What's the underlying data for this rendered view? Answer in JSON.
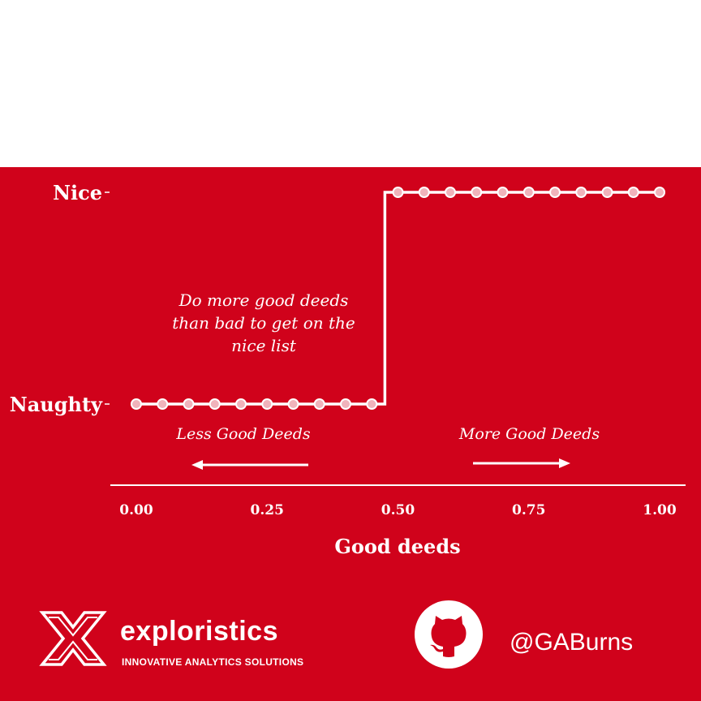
{
  "colors": {
    "background": "#d0021b",
    "foreground": "#ffffff",
    "marker_fill": "#f0b3bb"
  },
  "chart_data": {
    "type": "line",
    "step": true,
    "x": [
      0.0,
      0.05,
      0.1,
      0.15,
      0.2,
      0.25,
      0.3,
      0.35,
      0.4,
      0.45,
      0.5,
      0.55,
      0.6,
      0.65,
      0.7,
      0.75,
      0.8,
      0.85,
      0.9,
      0.95,
      1.0
    ],
    "y": [
      "Naughty",
      "Naughty",
      "Naughty",
      "Naughty",
      "Naughty",
      "Naughty",
      "Naughty",
      "Naughty",
      "Naughty",
      "Naughty",
      "Nice",
      "Nice",
      "Nice",
      "Nice",
      "Nice",
      "Nice",
      "Nice",
      "Nice",
      "Nice",
      "Nice",
      "Nice"
    ],
    "y_categories": [
      "Naughty",
      "Nice"
    ],
    "x_ticks": [
      "0.00",
      "0.25",
      "0.50",
      "0.75",
      "1.00"
    ],
    "xlabel": "Good deeds",
    "ylabel": "",
    "xlim": [
      0,
      1
    ],
    "grid": false,
    "annotations": {
      "callout": "Do more good deeds than bad to get on the nice list",
      "left_arrow": "Less Good Deeds",
      "right_arrow": "More Good Deeds"
    }
  },
  "footer": {
    "brand": "exploristics",
    "tagline": "INNOVATIVE ANALYTICS SOLUTIONS",
    "handle": "@GABurns",
    "logo_icon": "exploristics-x-logo",
    "github_icon": "github-octocat-icon"
  }
}
